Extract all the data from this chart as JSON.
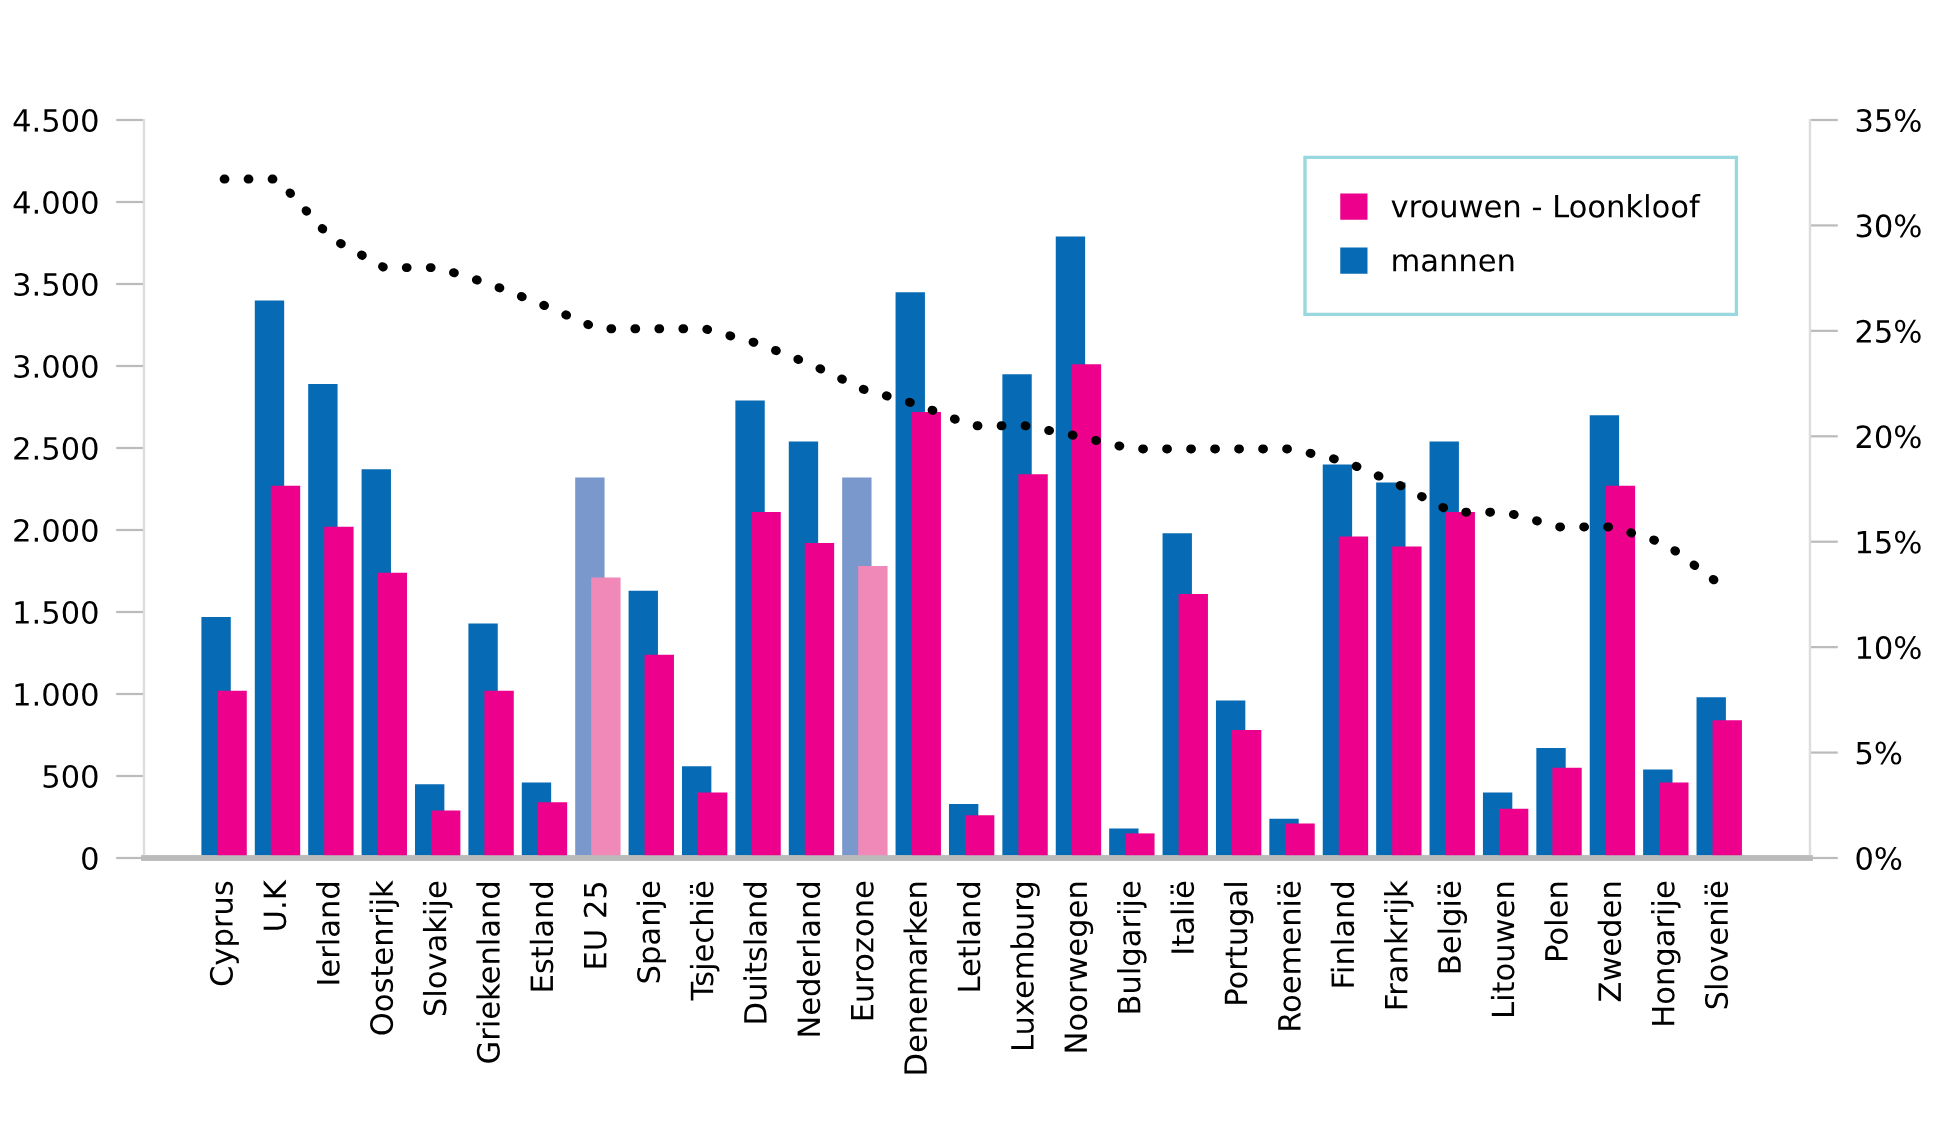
{
  "chart_data": {
    "type": "bar",
    "categories": [
      "Cyprus",
      "U.K",
      "Ierland",
      "Oostenrijk",
      "Slovakije",
      "Griekenland",
      "Estland",
      "EU 25",
      "Spanje",
      "Tsjechië",
      "Duitsland",
      "Nederland",
      "Eurozone",
      "Denemarken",
      "Letland",
      "Luxemburg",
      "Noorwegen",
      "Bulgarije",
      "Italië",
      "Portugal",
      "Roemenië",
      "Finland",
      "Frankrijk",
      "België",
      "Litouwen",
      "Polen",
      "Zweden",
      "Hongarije",
      "Slovenië"
    ],
    "series": [
      {
        "name": "mannen",
        "color": "#066bb4",
        "colors": [
          "#066bb4",
          "#066bb4",
          "#066bb4",
          "#066bb4",
          "#066bb4",
          "#066bb4",
          "#066bb4",
          "#7b98cc",
          "#066bb4",
          "#066bb4",
          "#066bb4",
          "#066bb4",
          "#7b98cc",
          "#066bb4",
          "#066bb4",
          "#066bb4",
          "#066bb4",
          "#066bb4",
          "#066bb4",
          "#066bb4",
          "#066bb4",
          "#066bb4",
          "#066bb4",
          "#066bb4",
          "#066bb4",
          "#066bb4",
          "#066bb4",
          "#066bb4",
          "#066bb4"
        ],
        "values": [
          1470,
          3400,
          2890,
          2370,
          450,
          1430,
          460,
          2320,
          1630,
          560,
          2790,
          2540,
          2320,
          3450,
          330,
          2950,
          3790,
          180,
          1980,
          960,
          240,
          2400,
          2290,
          2540,
          400,
          670,
          2700,
          540,
          980
        ]
      },
      {
        "name": "vrouwen - Loonkloof",
        "color": "#ec008c",
        "colors": [
          "#ec008c",
          "#ec008c",
          "#ec008c",
          "#ec008c",
          "#ec008c",
          "#ec008c",
          "#ec008c",
          "#f088b8",
          "#ec008c",
          "#ec008c",
          "#ec008c",
          "#ec008c",
          "#f088b8",
          "#ec008c",
          "#ec008c",
          "#ec008c",
          "#ec008c",
          "#ec008c",
          "#ec008c",
          "#ec008c",
          "#ec008c",
          "#ec008c",
          "#ec008c",
          "#ec008c",
          "#ec008c",
          "#ec008c",
          "#ec008c",
          "#ec008c",
          "#ec008c"
        ],
        "values": [
          1020,
          2270,
          2020,
          1740,
          290,
          1020,
          340,
          1710,
          1240,
          400,
          2110,
          1920,
          1780,
          2720,
          260,
          2340,
          3010,
          150,
          1610,
          780,
          210,
          1960,
          1900,
          2110,
          300,
          550,
          2270,
          460,
          840
        ]
      },
      {
        "type": "line",
        "axis": "y2",
        "color": "#000000",
        "line_style": "dotted",
        "values": [
          32.2,
          32.2,
          29.4,
          28.0,
          28.0,
          27.2,
          26.2,
          25.1,
          25.1,
          25.1,
          24.4,
          23.4,
          22.2,
          21.5,
          20.5,
          20.5,
          20.0,
          19.4,
          19.4,
          19.4,
          19.4,
          18.8,
          17.7,
          16.4,
          16.4,
          15.7,
          15.7,
          14.9,
          13.0
        ]
      }
    ],
    "ylim": [
      0,
      4500
    ],
    "yticks": [
      0,
      {
        "value": 500,
        "label": "500"
      },
      {
        "value": 1000,
        "label": "1.000"
      },
      {
        "value": 1500,
        "label": "1.500"
      },
      {
        "value": 2000,
        "label": "2.000"
      },
      {
        "value": 2500,
        "label": "2.500"
      },
      {
        "value": 3000,
        "label": "3.000"
      },
      {
        "value": 3500,
        "label": "3.500"
      },
      {
        "value": 4000,
        "label": "4.000"
      },
      {
        "value": 4500,
        "label": "4.500"
      }
    ],
    "y2lim": [
      0,
      35
    ],
    "y2ticks": [
      {
        "value": 0,
        "label": "0%"
      },
      {
        "value": 5,
        "label": "5%"
      },
      {
        "value": 10,
        "label": "10%"
      },
      {
        "value": 15,
        "label": "15%"
      },
      {
        "value": 20,
        "label": "20%"
      },
      {
        "value": 25,
        "label": "25%"
      },
      {
        "value": 30,
        "label": "30%"
      },
      {
        "value": 35,
        "label": "35%"
      }
    ],
    "grid": false,
    "legend": "top right"
  }
}
